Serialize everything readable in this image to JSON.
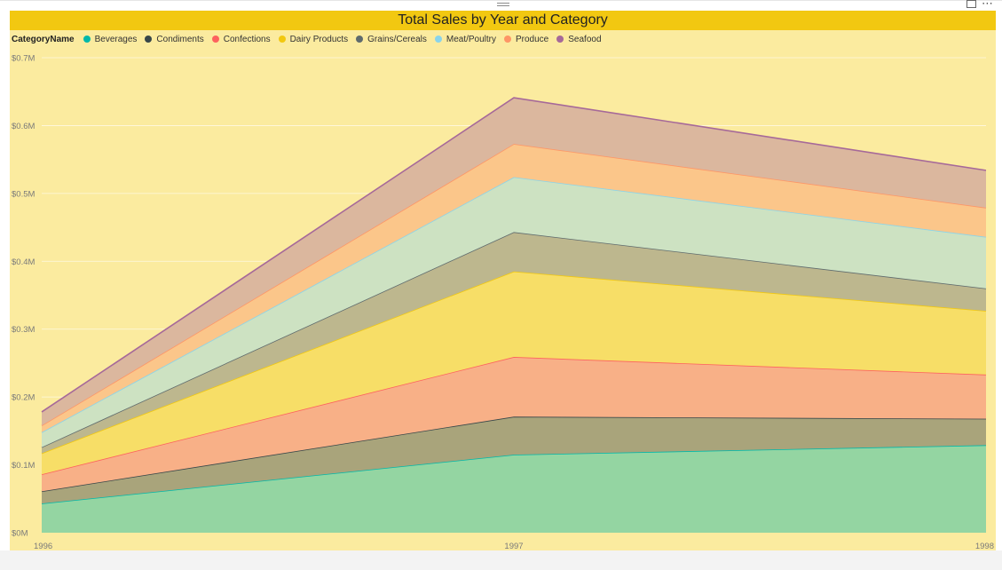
{
  "chart_data": {
    "type": "area",
    "stacked": true,
    "title": "Total Sales by Year and Category",
    "legend_title": "CategoryName",
    "legend_position": "top-left",
    "x": [
      "1996",
      "1997",
      "1998"
    ],
    "ylim": [
      0,
      0.7
    ],
    "y_ticks": [
      "$0M",
      "$0.1M",
      "$0.2M",
      "$0.3M",
      "$0.4M",
      "$0.5M",
      "$0.6M",
      "$0.7M"
    ],
    "y_unit": "$M",
    "grid": true,
    "series": [
      {
        "name": "Beverages",
        "color": "#01b8aa",
        "fill": "#94d5a2",
        "values": [
          0.043,
          0.115,
          0.129
        ]
      },
      {
        "name": "Condiments",
        "color": "#374649",
        "fill": "#a9a47b",
        "values": [
          0.018,
          0.056,
          0.039
        ]
      },
      {
        "name": "Confections",
        "color": "#fd625e",
        "fill": "#f8b087",
        "values": [
          0.025,
          0.088,
          0.065
        ]
      },
      {
        "name": "Dairy Products",
        "color": "#f2c80f",
        "fill": "#f7de67",
        "values": [
          0.031,
          0.126,
          0.094
        ]
      },
      {
        "name": "Grains/Cereals",
        "color": "#5f6b6d",
        "fill": "#bdb78e",
        "values": [
          0.009,
          0.058,
          0.033
        ]
      },
      {
        "name": "Meat/Poultry",
        "color": "#8ad4eb",
        "fill": "#cde2c2",
        "values": [
          0.022,
          0.081,
          0.076
        ]
      },
      {
        "name": "Produce",
        "color": "#fe9666",
        "fill": "#fbc68a",
        "values": [
          0.01,
          0.049,
          0.043
        ]
      },
      {
        "name": "Seafood",
        "color": "#a66999",
        "fill": "#dbb79e",
        "values": [
          0.02,
          0.068,
          0.055
        ]
      }
    ]
  }
}
